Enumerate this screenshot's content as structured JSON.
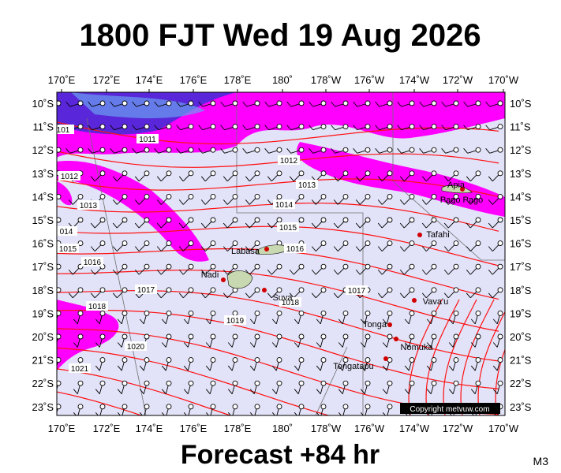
{
  "header": {
    "title": "1800 FJT Wed 19 Aug 2026"
  },
  "axes": {
    "lon_labels": [
      "170˚E",
      "172˚E",
      "174˚E",
      "176˚E",
      "178˚E",
      "180˚",
      "178˚W",
      "176˚W",
      "174˚W",
      "172˚W",
      "170˚W"
    ],
    "lat_labels": [
      "10˚S",
      "11˚S",
      "12˚S",
      "13˚S",
      "14˚S",
      "15˚S",
      "16˚S",
      "17˚S",
      "18˚S",
      "19˚S",
      "20˚S",
      "21˚S",
      "22˚S",
      "23˚S"
    ]
  },
  "isobar_labels": [
    "101",
    "1011",
    "1012",
    "1012",
    "1013",
    "1013",
    "1014",
    "014",
    "1015",
    "1015",
    "1016",
    "1016",
    "1017",
    "1017",
    "1018",
    "1018",
    "1019",
    "1020",
    "1021"
  ],
  "places": [
    "Apia",
    "Pago Pago",
    "Tafahi",
    "Labasa",
    "Nadi",
    "Suva",
    "Vava'u",
    "Tonga",
    "Nomuka",
    "Tongatapu"
  ],
  "copyright": "Copyright metvuw.com",
  "footer": {
    "forecast": "Forecast +84 hr",
    "model": "M3"
  }
}
